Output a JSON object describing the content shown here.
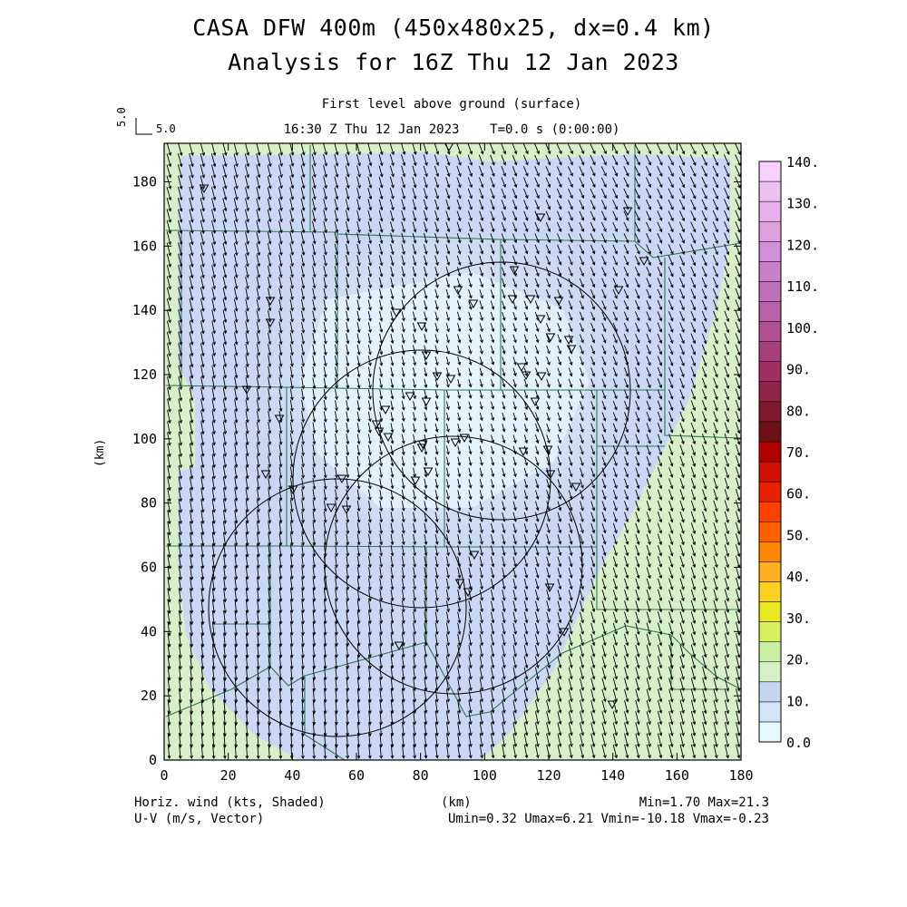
{
  "title": "CASA DFW 400m (450x480x25, dx=0.4 km)",
  "subtitle_time": "Analysis for 16Z Thu 12 Jan 2023",
  "level_label": "First level above ground (surface)",
  "valid_time_label": "16:30 Z Thu 12 Jan 2023    T=0.0 s (0:00:00)",
  "vector_reference": "5.0",
  "axis_labels": {
    "x": "(km)",
    "y": "(km)"
  },
  "footer": {
    "shaded_field": "Horiz. wind (kts, Shaded)",
    "vector_field": "U-V (m/s, Vector)",
    "range": "Min=1.70 Max=21.3",
    "uv_range": "Umin=0.32 Umax=6.21 Vmin=-10.18 Vmax=-0.23"
  },
  "map": {
    "x_range_km": [
      0,
      180
    ],
    "y_range_km": [
      0,
      192
    ],
    "x_ticks": [
      "0",
      "20",
      "40",
      "60",
      "80",
      "100",
      "120",
      "140",
      "160",
      "180"
    ],
    "y_ticks": [
      "0",
      "20",
      "40",
      "60",
      "80",
      "100",
      "120",
      "140",
      "160",
      "180"
    ],
    "wind_direction_note": "northwesterly flow, vectors pointing to the southeast",
    "radar_circle_count": 4
  },
  "colorbar": {
    "labels": [
      "0.0",
      "10.",
      "20.",
      "30.",
      "40.",
      "50.",
      "60.",
      "70.",
      "80.",
      "90.",
      "100.",
      "110.",
      "120.",
      "130.",
      "140."
    ],
    "colors": [
      "#e8f8ff",
      "#d4e4f8",
      "#c8d4f4",
      "#d8f0c8",
      "#c8f0a0",
      "#d8f060",
      "#e8e820",
      "#ffd020",
      "#ffb020",
      "#ff8800",
      "#ff6000",
      "#ff4000",
      "#e82000",
      "#d01000",
      "#b00000",
      "#6e1018",
      "#801830",
      "#902448",
      "#a03060",
      "#a84078",
      "#b05090",
      "#b860a8",
      "#c070b8",
      "#c880c8",
      "#d090d8",
      "#e0a0e0",
      "#e8b0ec",
      "#f0c0f4",
      "#f8d0fc"
    ]
  }
}
